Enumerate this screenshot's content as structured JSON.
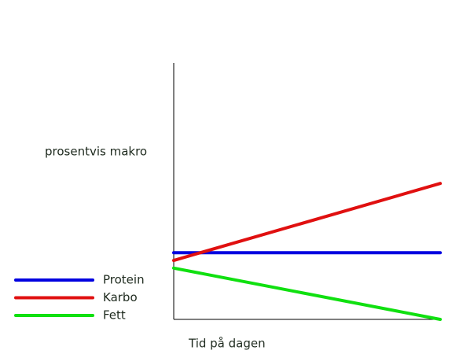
{
  "chart_data": {
    "type": "line",
    "ylabel": "prosentvis makro",
    "xlabel": "Tid på dagen",
    "x": [
      0,
      1
    ],
    "xlim": [
      0,
      1
    ],
    "ylim": [
      0,
      100
    ],
    "legend": "left",
    "series": [
      {
        "name": "Protein",
        "color": "#0000e0",
        "values": [
          26,
          26
        ]
      },
      {
        "name": "Karbo",
        "color": "#e01010",
        "values": [
          23,
          53
        ]
      },
      {
        "name": "Fett",
        "color": "#10e010",
        "values": [
          20,
          0
        ]
      }
    ]
  }
}
